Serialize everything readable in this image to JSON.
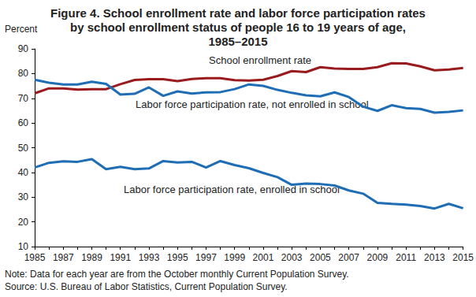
{
  "chart_data": {
    "type": "line",
    "title": "Figure 4. School enrollment rate and labor force participation rates by school enrollment status of people 16 to 19 years of age, 1985–2015",
    "ylabel": "Percent",
    "note": "Note: Data for each year are from the October monthly Current Population Survey.",
    "source": "Source: U.S. Bureau of Labor Statistics, Current Population Survey.",
    "x": [
      1985,
      1986,
      1987,
      1988,
      1989,
      1990,
      1991,
      1992,
      1993,
      1994,
      1995,
      1996,
      1997,
      1998,
      1999,
      2000,
      2001,
      2002,
      2003,
      2004,
      2005,
      2006,
      2007,
      2008,
      2009,
      2010,
      2011,
      2012,
      2013,
      2014,
      2015
    ],
    "series": [
      {
        "name": "School enrollment rate",
        "color": "#9a1b1e",
        "values": [
          72,
          74,
          74,
          73.5,
          73.7,
          73.7,
          75.7,
          77.4,
          77.7,
          77.7,
          76.9,
          77.8,
          78.1,
          78.1,
          77.3,
          77.2,
          77.5,
          79,
          81,
          80.6,
          82.6,
          82,
          81.9,
          81.9,
          82.6,
          84.2,
          84.1,
          82.9,
          81.3,
          81.6,
          82.3
        ]
      },
      {
        "name": "Labor force participation rate, not enrolled in school",
        "color": "#1f6db5",
        "values": [
          77.5,
          76.3,
          75.6,
          75.6,
          76.7,
          75.8,
          71.5,
          71.8,
          74.4,
          71,
          72.8,
          71.9,
          72.4,
          72.5,
          73.7,
          75.6,
          75,
          73.4,
          72.2,
          71.2,
          70.8,
          72.4,
          70.5,
          66.6,
          64.9,
          67.2,
          66,
          65.7,
          64.2,
          64.5,
          65.1
        ]
      },
      {
        "name": "Labor force participation rate, enrolled in school",
        "color": "#1f6db5",
        "values": [
          42,
          43.9,
          44.5,
          44.3,
          45.4,
          41.3,
          42.3,
          41.3,
          41.6,
          44.6,
          44,
          44.3,
          42,
          44.6,
          43,
          41.7,
          39.8,
          38.1,
          35,
          35.5,
          35.3,
          34.7,
          32.7,
          31.4,
          27.7,
          27.3,
          27,
          26.4,
          25.4,
          27.3,
          25.5
        ]
      }
    ],
    "xlim": [
      1985,
      2015
    ],
    "xticks": [
      1985,
      1987,
      1989,
      1991,
      1993,
      1995,
      1997,
      1999,
      2001,
      2003,
      2005,
      2007,
      2009,
      2011,
      2013,
      2015
    ],
    "ylim": [
      10,
      90
    ],
    "yticks": [
      10,
      20,
      30,
      40,
      50,
      60,
      70,
      80,
      90
    ],
    "grid": false
  }
}
